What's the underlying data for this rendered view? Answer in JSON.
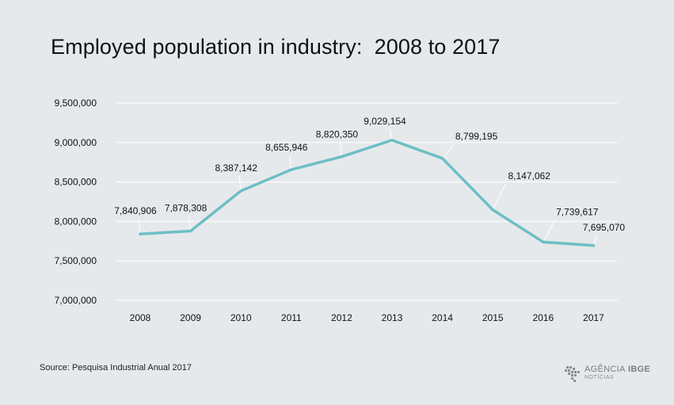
{
  "title": "Employed population in industry:  2008 to 2017",
  "source": "Source: Pesquisa Industrial Anual 2017",
  "logo": {
    "brand_light": "AGÊNCIA",
    "brand_bold": "IBGE",
    "sub": "NOTÍCIAS"
  },
  "colors": {
    "background": "#e6e9eb",
    "line": "#6cbfc4",
    "grid": "#ffffff",
    "text": "#111111"
  },
  "chart_data": {
    "type": "line",
    "title": "Employed population in industry:  2008 to 2017",
    "categories": [
      "2008",
      "2009",
      "2010",
      "2011",
      "2012",
      "2013",
      "2014",
      "2015",
      "2016",
      "2017"
    ],
    "series": [
      {
        "values": [
          7840906,
          7878308,
          8387142,
          8655946,
          8820350,
          9029154,
          8799195,
          8147062,
          7739617,
          7695070
        ],
        "labels": [
          "7,840,906",
          "7,878,308",
          "8,387,142",
          "8,655,946",
          "8,820,350",
          "9,029,154",
          "8,799,195",
          "8,147,062",
          "7,739,617",
          "7,695,070"
        ]
      }
    ],
    "ylim": [
      7000000,
      9500000
    ],
    "yticks": [
      7000000,
      7500000,
      8000000,
      8500000,
      9000000,
      9500000
    ],
    "ytick_labels": [
      "7,000,000",
      "7,500,000",
      "8,000,000",
      "8,500,000",
      "9,000,000",
      "9,500,000"
    ],
    "grid": true,
    "xlabel": "",
    "ylabel": ""
  }
}
